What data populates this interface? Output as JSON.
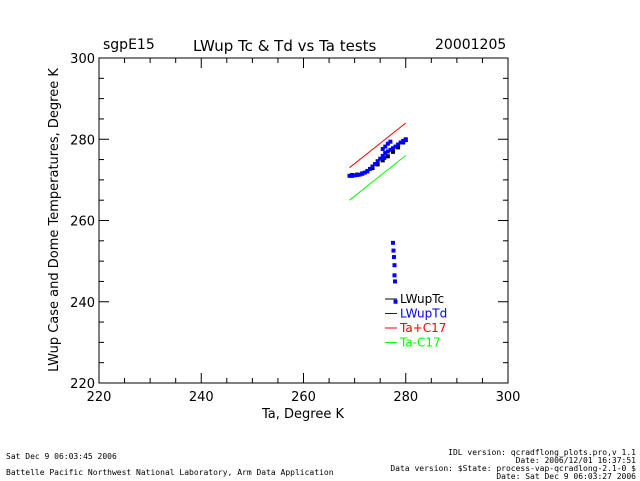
{
  "header": {
    "site": "sgpE15",
    "title": "LWup Tc & Td vs Ta tests",
    "date": "20001205"
  },
  "footer": {
    "left_line1": "Sat Dec  9 06:03:45 2006",
    "left_line2": "Battelle Pacific Northwest National Laboratory, Arm Data Application",
    "right_line1": "IDL version: qcradflong_plots.pro,v 1.1",
    "right_line2": "Date: 2006/12/01 16:37:51",
    "right_line3": "Data version: $State: process-vap-qcradlong-2.1-0 $",
    "right_line4": "Date: Sat Dec  9 06:03:27 2006"
  },
  "chart_data": {
    "type": "scatter",
    "title": "LWup Tc & Td vs Ta tests",
    "xlabel": "Ta, Degree K",
    "ylabel": "LWup Case and Dome Temperatures, Degree K",
    "xlim": [
      220,
      300
    ],
    "ylim": [
      220,
      300
    ],
    "xticks": [
      "220",
      "240",
      "260",
      "280",
      "300"
    ],
    "yticks": [
      "220",
      "240",
      "260",
      "280",
      "300"
    ],
    "grid": false,
    "legend_position": "inside-lower-right",
    "series": [
      {
        "name": "LWupTc",
        "color": "#000000",
        "kind": "points",
        "x": [
          269.5,
          270.5,
          271.5,
          272.5,
          273.5,
          274.5,
          275.5,
          276.5,
          277.5,
          278.5,
          279.5,
          280.0
        ],
        "y": [
          271.2,
          271.3,
          271.6,
          272.1,
          272.9,
          273.8,
          274.8,
          275.8,
          276.9,
          278.0,
          279.2,
          279.8
        ]
      },
      {
        "name": "LWupTd",
        "color": "#0000ff",
        "kind": "points",
        "x": [
          269.0,
          269.5,
          270.0,
          270.5,
          271.0,
          271.5,
          272.0,
          272.5,
          273.0,
          273.5,
          274.0,
          274.5,
          275.0,
          275.5,
          276.0,
          276.5,
          277.0,
          277.5,
          278.0,
          278.5,
          279.0,
          279.5,
          280.0,
          275.5,
          276.0,
          276.5,
          277.0,
          276.0,
          275.8,
          277.5,
          277.6,
          277.7,
          277.8,
          277.8,
          277.9,
          278.0
        ],
        "y": [
          271.0,
          271.0,
          271.1,
          271.2,
          271.3,
          271.5,
          271.8,
          272.2,
          272.7,
          273.3,
          273.9,
          274.6,
          275.2,
          275.9,
          276.5,
          277.0,
          277.4,
          277.8,
          278.2,
          278.7,
          279.2,
          279.6,
          280.0,
          277.6,
          278.2,
          278.9,
          279.4,
          276.6,
          275.4,
          254.5,
          252.6,
          251.0,
          249.0,
          246.5,
          245.0,
          240.0
        ]
      },
      {
        "name": "Ta+C17",
        "color": "#ff0000",
        "kind": "line",
        "x": [
          269.0,
          280.0
        ],
        "y": [
          273.0,
          284.0
        ]
      },
      {
        "name": "Ta-C17",
        "color": "#00ff00",
        "kind": "line",
        "x": [
          269.0,
          280.0
        ],
        "y": [
          265.0,
          276.0
        ]
      }
    ]
  }
}
